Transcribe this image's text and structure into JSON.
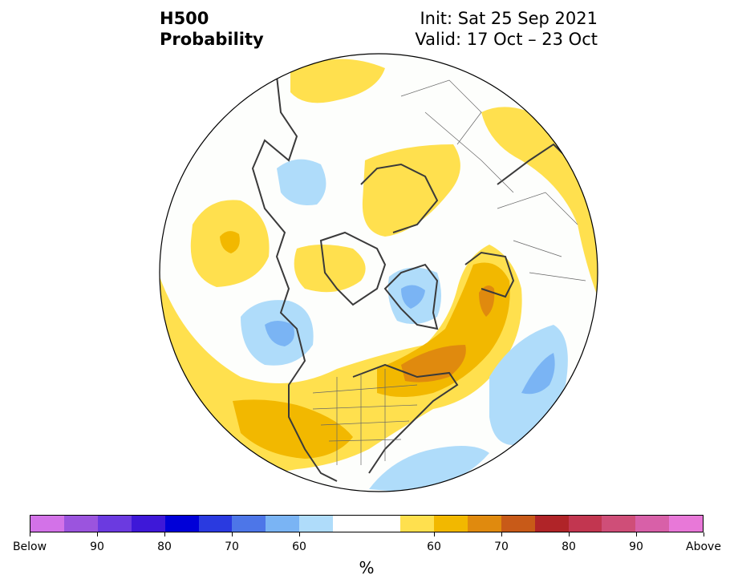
{
  "title": {
    "line1": "H500",
    "line2": "Probability"
  },
  "header": {
    "init": "Init: Sat 25 Sep 2021",
    "valid": "Valid: 17 Oct – 23 Oct"
  },
  "colorbar": {
    "colors": [
      "#d372e8",
      "#9b54de",
      "#6b3ae0",
      "#3e18d8",
      "#0000d8",
      "#2a3ae0",
      "#4d76e8",
      "#7ab4f4",
      "#afdcfa",
      "#ffffff",
      "#ffffff",
      "#ffe04e",
      "#f2b800",
      "#e08a0e",
      "#c85a18",
      "#b02428",
      "#c23650",
      "#cf4e78",
      "#d860a8",
      "#e878d8"
    ],
    "tick_labels": [
      "Below",
      "90",
      "80",
      "70",
      "60",
      "60",
      "70",
      "80",
      "90",
      "Above"
    ],
    "unit": "%"
  },
  "map_colors": {
    "above_light": "#ffe04e",
    "above_mid": "#f2b800",
    "above_dark": "#e08a0e",
    "below_light": "#afdcfa",
    "below_mid": "#7ab4f4"
  }
}
